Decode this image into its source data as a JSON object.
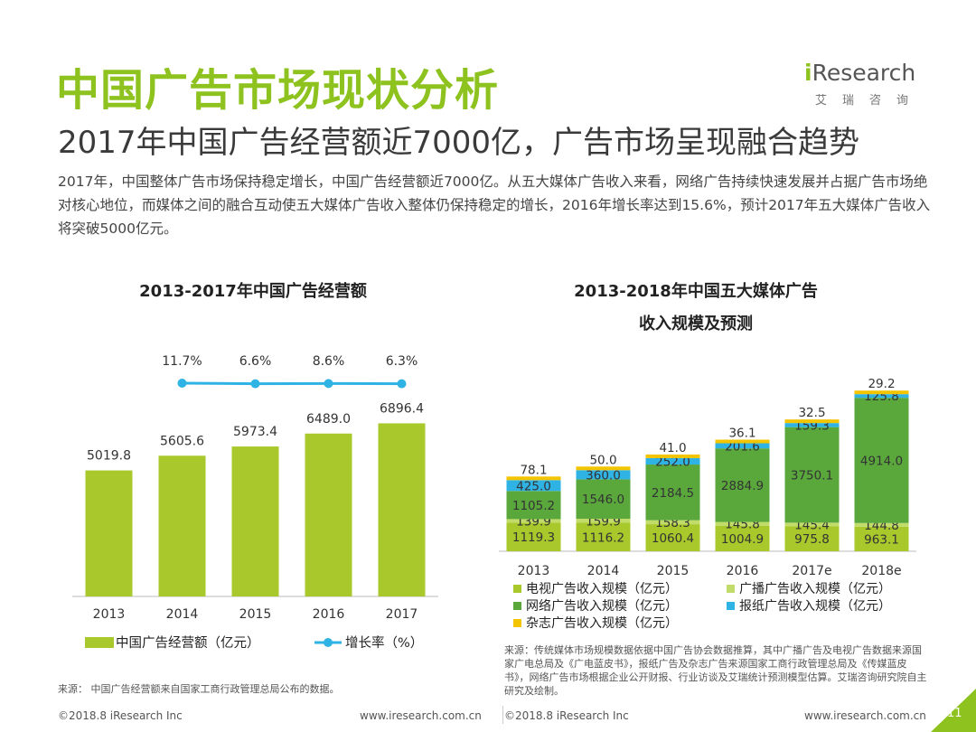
{
  "title": "中国广告市场现状分析",
  "subtitle": "2017年中国广告经营额近7000亿，广告市场呈现融合趋势",
  "description": "2017年，中国整体广告市场保持稳定增长，中国广告经营额近7000亿。从五大媒体广告收入来看，网络广告持续快速发展并占据广告市场绝对核心地位，而媒体之间的融合互动使五大媒体广告收入整体仍保持稳定的增长，2016年增长率达到15.6%，预计2017年五大媒体广告收入将突破5000亿元。",
  "logo": {
    "brand": "Research",
    "brand_i": "i",
    "sub": "艾瑞咨询"
  },
  "chart_data": [
    {
      "type": "bar",
      "title": "2013-2017年中国广告经营额",
      "categories": [
        "2013",
        "2014",
        "2015",
        "2016",
        "2017"
      ],
      "values": [
        5019.8,
        5605.6,
        5973.4,
        6489.0,
        6896.4
      ],
      "value_labels": [
        "5019.8",
        "5605.6",
        "5973.4",
        "6489.0",
        "6896.4"
      ],
      "growth_labels": [
        "11.7%",
        "6.6%",
        "8.6%",
        "6.3%"
      ],
      "growth_values": [
        11.7,
        6.6,
        8.6,
        6.3
      ],
      "growth_categories": [
        "2014",
        "2015",
        "2016",
        "2017"
      ],
      "legend": [
        "中国广告经营额（亿元）",
        "增长率（%）"
      ],
      "colors": {
        "bar": "#a8c82b",
        "line": "#2fb3e4"
      },
      "ylim": [
        0,
        9000
      ]
    },
    {
      "type": "bar",
      "stacked": true,
      "title_line1": "2013-2018年中国五大媒体广告",
      "title_line2": "收入规模及预测",
      "categories": [
        "2013",
        "2014",
        "2015",
        "2016",
        "2017e",
        "2018e"
      ],
      "series": [
        {
          "name": "电视广告收入规模（亿元）",
          "color": "#a8c82b",
          "values": [
            1119.3,
            1116.2,
            1060.4,
            1004.9,
            975.8,
            963.1
          ],
          "labels": [
            "1119.3",
            "1116.2",
            "1060.4",
            "1004.9",
            "975.8",
            "963.1"
          ]
        },
        {
          "name": "广播广告收入规模（亿元）",
          "color": "#c2dc6a",
          "values": [
            139.9,
            159.9,
            158.3,
            145.8,
            145.4,
            144.8
          ],
          "labels": [
            "139.9",
            "159.9",
            "158.3",
            "145.8",
            "145.4",
            "144.8"
          ]
        },
        {
          "name": "网络广告收入规模（亿元）",
          "color": "#5aa83c",
          "values": [
            1105.2,
            1546.0,
            2184.5,
            2884.9,
            3750.1,
            4914.0
          ],
          "labels": [
            "1105.2",
            "1546.0",
            "2184.5",
            "2884.9",
            "3750.1",
            "4914.0"
          ]
        },
        {
          "name": "报纸广告收入规模（亿元）",
          "color": "#2fb3e4",
          "values": [
            425.0,
            360.0,
            252.0,
            201.6,
            159.3,
            125.8
          ],
          "labels": [
            "425.0",
            "360.0",
            "252.0",
            "201.6",
            "159.3",
            "125.8"
          ]
        },
        {
          "name": "杂志广告收入规模（亿元）",
          "color": "#f2c500",
          "values": [
            78.1,
            50.0,
            41.0,
            36.1,
            32.5,
            29.2
          ],
          "labels": [
            "78.1",
            "50.0",
            "41.0",
            "36.1",
            "32.5",
            "29.2"
          ]
        }
      ],
      "legend_order": [
        0,
        1,
        2,
        3,
        4
      ]
    }
  ],
  "source1": "来源：  中国广告经营额来自国家工商行政管理总局公布的数据。",
  "source2": "来源：传统媒体市场规模数据依据中国广告协会数据推算，其中广播广告及电视广告数据来源国家广电总局及《广电蓝皮书》，报纸广告及杂志广告来源国家工商行政管理总局及《传媒蓝皮书》，网络广告市场根据企业公开财报、行业访谈及艾瑞统计预测模型估算。艾瑞咨询研究院自主研究及绘制。",
  "footer": {
    "copyright": "©2018.8 iResearch Inc",
    "site": "www.iresearch.com.cn",
    "page": "11"
  }
}
